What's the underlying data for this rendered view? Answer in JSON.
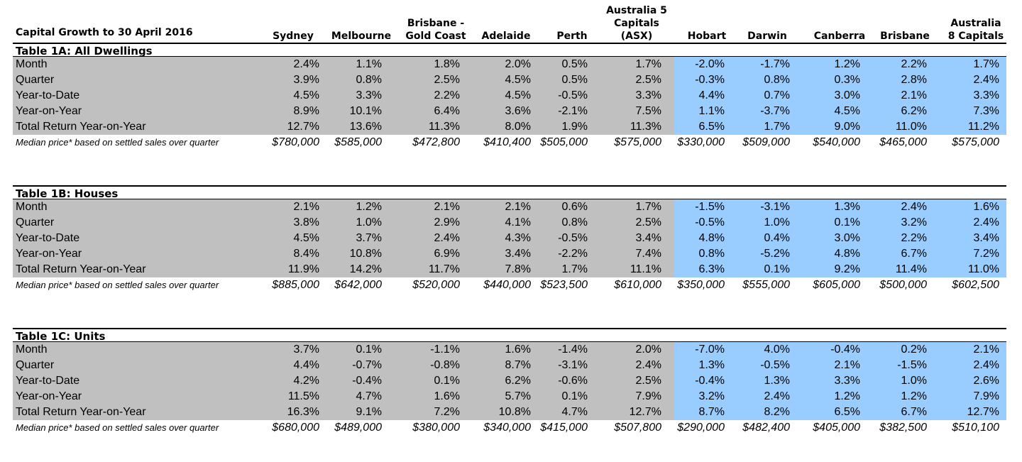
{
  "chart_data": {
    "type": "table",
    "title": "Capital Growth to 30 April 2016",
    "columns": [
      "Sydney",
      "Melbourne",
      "Brisbane -\nGold Coast",
      "Adelaide",
      "Perth",
      "Australia 5\nCapitals\n(ASX)",
      "Hobart",
      "Darwin",
      "Canberra",
      "Brisbane",
      "Australia\n8 Capitals"
    ],
    "median_label": "Median price* based on settled sales over quarter",
    "colors": {
      "grey_band": "#c0c0c0",
      "blue_band": "#99ccff"
    },
    "tables": [
      {
        "title": "Table 1A: All Dwellings",
        "rows": [
          {
            "label": "Month",
            "values": [
              "2.4%",
              "1.1%",
              "1.8%",
              "2.0%",
              "0.5%",
              "1.7%",
              "-2.0%",
              "-1.7%",
              "1.2%",
              "2.2%",
              "1.7%"
            ]
          },
          {
            "label": "Quarter",
            "values": [
              "3.9%",
              "0.8%",
              "2.5%",
              "4.5%",
              "0.5%",
              "2.5%",
              "-0.3%",
              "0.8%",
              "0.3%",
              "2.8%",
              "2.4%"
            ]
          },
          {
            "label": "Year-to-Date",
            "values": [
              "4.5%",
              "3.3%",
              "2.2%",
              "4.5%",
              "-0.5%",
              "3.3%",
              "4.4%",
              "0.7%",
              "3.0%",
              "2.1%",
              "3.3%"
            ]
          },
          {
            "label": "Year-on-Year",
            "values": [
              "8.9%",
              "10.1%",
              "6.4%",
              "3.6%",
              "-2.1%",
              "7.5%",
              "1.1%",
              "-3.7%",
              "4.5%",
              "6.2%",
              "7.3%"
            ]
          },
          {
            "label": "Total Return Year-on-Year",
            "values": [
              "12.7%",
              "13.6%",
              "11.3%",
              "8.0%",
              "1.9%",
              "11.3%",
              "6.5%",
              "1.7%",
              "9.0%",
              "11.0%",
              "11.2%"
            ]
          }
        ],
        "median": [
          "$780,000",
          "$585,000",
          "$472,800",
          "$410,400",
          "$505,000",
          "$575,000",
          "$330,000",
          "$509,000",
          "$540,000",
          "$465,000",
          "$575,000"
        ]
      },
      {
        "title": "Table 1B: Houses",
        "rows": [
          {
            "label": "Month",
            "values": [
              "2.1%",
              "1.2%",
              "2.1%",
              "2.1%",
              "0.6%",
              "1.7%",
              "-1.5%",
              "-3.1%",
              "1.3%",
              "2.4%",
              "1.6%"
            ]
          },
          {
            "label": "Quarter",
            "values": [
              "3.8%",
              "1.0%",
              "2.9%",
              "4.1%",
              "0.8%",
              "2.5%",
              "-0.5%",
              "1.0%",
              "0.1%",
              "3.2%",
              "2.4%"
            ]
          },
          {
            "label": "Year-to-Date",
            "values": [
              "4.5%",
              "3.7%",
              "2.4%",
              "4.3%",
              "-0.5%",
              "3.4%",
              "4.8%",
              "0.4%",
              "3.0%",
              "2.2%",
              "3.4%"
            ]
          },
          {
            "label": "Year-on-Year",
            "values": [
              "8.4%",
              "10.8%",
              "6.9%",
              "3.4%",
              "-2.2%",
              "7.4%",
              "0.8%",
              "-5.2%",
              "4.8%",
              "6.7%",
              "7.2%"
            ]
          },
          {
            "label": "Total Return Year-on-Year",
            "values": [
              "11.9%",
              "14.2%",
              "11.7%",
              "7.8%",
              "1.7%",
              "11.1%",
              "6.3%",
              "0.1%",
              "9.2%",
              "11.4%",
              "11.0%"
            ]
          }
        ],
        "median": [
          "$885,000",
          "$642,000",
          "$520,000",
          "$440,000",
          "$523,500",
          "$610,000",
          "$350,000",
          "$555,000",
          "$605,000",
          "$500,000",
          "$602,500"
        ]
      },
      {
        "title": "Table 1C: Units",
        "rows": [
          {
            "label": "Month",
            "values": [
              "3.7%",
              "0.1%",
              "-1.1%",
              "1.6%",
              "-1.4%",
              "2.0%",
              "-7.0%",
              "4.0%",
              "-0.4%",
              "0.2%",
              "2.1%"
            ]
          },
          {
            "label": "Quarter",
            "values": [
              "4.4%",
              "-0.7%",
              "-0.8%",
              "8.7%",
              "-3.1%",
              "2.4%",
              "1.3%",
              "-0.5%",
              "2.1%",
              "-1.5%",
              "2.4%"
            ]
          },
          {
            "label": "Year-to-Date",
            "values": [
              "4.2%",
              "-0.4%",
              "0.1%",
              "6.2%",
              "-0.6%",
              "2.5%",
              "-0.4%",
              "1.3%",
              "3.3%",
              "1.0%",
              "2.6%"
            ]
          },
          {
            "label": "Year-on-Year",
            "values": [
              "11.5%",
              "4.7%",
              "1.6%",
              "5.7%",
              "0.1%",
              "7.9%",
              "3.2%",
              "2.4%",
              "1.2%",
              "1.2%",
              "7.9%"
            ]
          },
          {
            "label": "Total Return Year-on-Year",
            "values": [
              "16.3%",
              "9.1%",
              "7.2%",
              "10.8%",
              "4.7%",
              "12.7%",
              "8.7%",
              "8.2%",
              "6.5%",
              "6.7%",
              "12.7%"
            ]
          }
        ],
        "median": [
          "$680,000",
          "$489,000",
          "$380,000",
          "$340,000",
          "$415,000",
          "$507,800",
          "$290,000",
          "$482,400",
          "$405,000",
          "$382,500",
          "$510,100"
        ]
      }
    ]
  }
}
